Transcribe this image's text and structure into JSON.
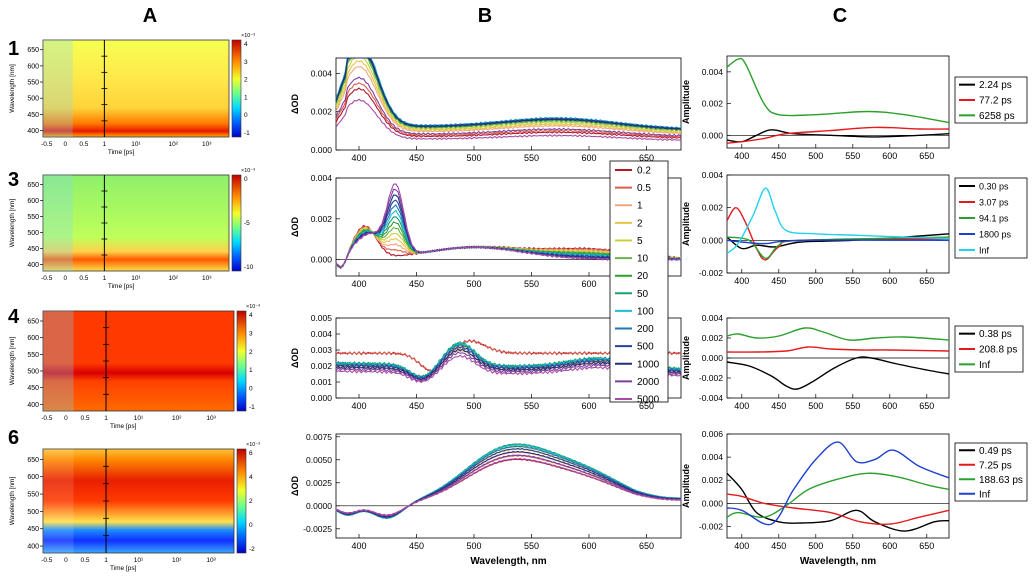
{
  "column_labels": [
    "A",
    "B",
    "C"
  ],
  "row_labels": [
    "1",
    "3",
    "4",
    "6"
  ],
  "colors": {
    "palette_B": [
      "#b2182b",
      "#d6604d",
      "#f4a582",
      "#e8c547",
      "#c7d13b",
      "#6ab04c",
      "#2ca02c",
      "#1b9e77",
      "#17becf",
      "#1f77b4",
      "#2c3e9e",
      "#1f2f7a",
      "#7a3fa0",
      "#a64ca6"
    ],
    "series_C": [
      "#000000",
      "#e41a1c",
      "#2ca02c",
      "#1f3fd1",
      "#22d3ee"
    ]
  },
  "colormaps": [
    {
      "name": "cmap-1",
      "exponent": "×10⁻³",
      "ticks": [
        "4",
        "3",
        "2",
        "1",
        "0",
        "-1"
      ]
    },
    {
      "name": "cmap-3",
      "exponent": "×10⁻³",
      "ticks": [
        "0",
        "-5",
        "-10"
      ]
    },
    {
      "name": "cmap-4",
      "exponent": "×10⁻³",
      "ticks": [
        "4",
        "3",
        "2",
        "1",
        "0",
        "-1"
      ]
    },
    {
      "name": "cmap-6",
      "exponent": "×10⁻³",
      "ticks": [
        "6",
        "4",
        "2",
        "0",
        "-2"
      ]
    }
  ],
  "chart_data": [
    {
      "type": "heatmap",
      "panel": "A",
      "compound": "1",
      "ylabel": "Wavelength [nm]",
      "xlabel": "Time [ps]",
      "yticks": [
        "650",
        "600",
        "550",
        "500",
        "450",
        "400"
      ],
      "xticks": [
        "-0.5",
        "0",
        "0.5",
        "1",
        "10¹",
        "10²",
        "10³"
      ],
      "ylim": [
        380,
        680
      ],
      "description_bands": [
        {
          "center": 400,
          "level": "high"
        },
        {
          "center": 550,
          "level": "medium"
        }
      ]
    },
    {
      "type": "heatmap",
      "panel": "A",
      "compound": "3",
      "ylabel": "Wavelength [nm]",
      "xlabel": "Time [ps]",
      "yticks": [
        "650",
        "600",
        "550",
        "500",
        "450",
        "400"
      ],
      "xticks": [
        "-0.5",
        "0",
        "0.5",
        "1",
        "10¹",
        "10²",
        "10³"
      ],
      "ylim": [
        380,
        680
      ],
      "description_bands": [
        {
          "center": 430,
          "level": "high"
        }
      ]
    },
    {
      "type": "heatmap",
      "panel": "A",
      "compound": "4",
      "ylabel": "Wavelength [nm]",
      "xlabel": "Time [ps]",
      "yticks": [
        "650",
        "600",
        "550",
        "500",
        "450",
        "400"
      ],
      "xticks": [
        "-0.5",
        "0",
        "0.5",
        "1",
        "10¹",
        "10²",
        "10³"
      ],
      "ylim": [
        380,
        680
      ],
      "description_bands": [
        {
          "center": 490,
          "level": "high"
        }
      ]
    },
    {
      "type": "heatmap",
      "panel": "A",
      "compound": "6",
      "ylabel": "Wavelength [nm]",
      "xlabel": "Time [ps]",
      "yticks": [
        "650",
        "600",
        "550",
        "500",
        "450",
        "400"
      ],
      "xticks": [
        "-0.5",
        "0",
        "0.5",
        "1",
        "10¹",
        "10²",
        "10³"
      ],
      "ylim": [
        380,
        680
      ],
      "description_bands": [
        {
          "center": 530,
          "level": "high"
        },
        {
          "center": 425,
          "level": "low"
        }
      ]
    },
    {
      "type": "line",
      "panel": "B",
      "compound": "1",
      "ylabel": "ΔOD",
      "xlabel": "",
      "xlim": [
        380,
        680
      ],
      "ylim": [
        0,
        0.0048
      ],
      "xticks": [
        "400",
        "450",
        "500",
        "550",
        "600",
        "650"
      ],
      "yticks": [
        "0.000",
        "0.002",
        "0.004"
      ],
      "ytick_values": [
        0,
        0.002,
        0.004
      ],
      "shape": {
        "p1": [
          395,
          0.0045
        ],
        "valley": [
          460,
          0.0013
        ],
        "p2": [
          580,
          0.0018
        ],
        "end": 0.0012
      },
      "scales": [
        0.55,
        0.6,
        0.75,
        0.8,
        0.85,
        0.9,
        0.93,
        0.95,
        1.0,
        0.98,
        0.97,
        0.95,
        0.65,
        0.45
      ]
    },
    {
      "type": "line",
      "panel": "B",
      "compound": "3",
      "ylabel": "ΔOD",
      "xlabel": "",
      "xlim": [
        380,
        680
      ],
      "ylim": [
        -0.0008,
        0.004
      ],
      "xticks": [
        "400",
        "450",
        "500",
        "550",
        "600",
        "650"
      ],
      "yticks": [
        "0.000",
        "0.002",
        "0.004"
      ],
      "ytick_values": [
        0,
        0.002,
        0.004
      ],
      "zero_line": true,
      "legend_title": "",
      "legend": [
        "0.2",
        "0.5",
        "1",
        "2",
        "5",
        "10",
        "20",
        "50",
        "100",
        "200",
        "500",
        "1000",
        "2000",
        "5000"
      ]
    },
    {
      "type": "line",
      "panel": "B",
      "compound": "4",
      "ylabel": "ΔOD",
      "xlabel": "",
      "xlim": [
        380,
        680
      ],
      "ylim": [
        0,
        0.005
      ],
      "xticks": [
        "400",
        "450",
        "500",
        "550",
        "600",
        "650"
      ],
      "yticks": [
        "0.000",
        "0.001",
        "0.002",
        "0.003",
        "0.004",
        "0.005"
      ],
      "ytick_values": [
        0,
        0.001,
        0.002,
        0.003,
        0.004,
        0.005
      ]
    },
    {
      "type": "line",
      "panel": "B",
      "compound": "6",
      "ylabel": "ΔOD",
      "xlabel": "Wavelength, nm",
      "xlim": [
        380,
        680
      ],
      "ylim": [
        -0.0035,
        0.0078
      ],
      "xticks": [
        "400",
        "450",
        "500",
        "550",
        "600",
        "650"
      ],
      "yticks": [
        "-0.0025",
        "0.0000",
        "0.0025",
        "0.0050",
        "0.0075"
      ],
      "ytick_values": [
        -0.0025,
        0,
        0.0025,
        0.005,
        0.0075
      ],
      "zero_line": true
    },
    {
      "type": "line",
      "panel": "C",
      "compound": "1",
      "ylabel": "Amplitude",
      "xlabel": "",
      "xlim": [
        380,
        680
      ],
      "ylim": [
        -0.0008,
        0.005
      ],
      "xticks": [
        "400",
        "450",
        "500",
        "550",
        "600",
        "650"
      ],
      "yticks": [
        "0.000",
        "0.002",
        "0.004"
      ],
      "ytick_values": [
        0,
        0.002,
        0.004
      ],
      "zero_line": true,
      "series": [
        {
          "name": "2.24 ps",
          "color": "#000000",
          "points": [
            [
              380,
              -0.0003
            ],
            [
              400,
              -0.0004
            ],
            [
              420,
              0.0
            ],
            [
              440,
              0.00035
            ],
            [
              470,
              0.0001
            ],
            [
              520,
              0.0
            ],
            [
              580,
              -0.0001
            ],
            [
              640,
              0.0
            ],
            [
              680,
              0.0001
            ]
          ]
        },
        {
          "name": "77.2 ps",
          "color": "#e41a1c",
          "points": [
            [
              380,
              -0.0005
            ],
            [
              400,
              -0.0004
            ],
            [
              430,
              -0.0002
            ],
            [
              460,
              0.0001
            ],
            [
              520,
              0.0003
            ],
            [
              580,
              0.0005
            ],
            [
              640,
              0.0004
            ],
            [
              680,
              0.0004
            ]
          ]
        },
        {
          "name": "6258 ps",
          "color": "#2ca02c",
          "points": [
            [
              380,
              0.0043
            ],
            [
              395,
              0.0048
            ],
            [
              405,
              0.0045
            ],
            [
              430,
              0.002
            ],
            [
              450,
              0.0013
            ],
            [
              500,
              0.0013
            ],
            [
              570,
              0.0015
            ],
            [
              620,
              0.0013
            ],
            [
              680,
              0.0008
            ]
          ]
        }
      ]
    },
    {
      "type": "line",
      "panel": "C",
      "compound": "3",
      "ylabel": "Amplitude",
      "xlabel": "",
      "xlim": [
        380,
        680
      ],
      "ylim": [
        -0.002,
        0.004
      ],
      "xticks": [
        "400",
        "450",
        "500",
        "550",
        "600",
        "650"
      ],
      "yticks": [
        "-0.002",
        "0.000",
        "0.002",
        "0.004"
      ],
      "ytick_values": [
        -0.002,
        0,
        0.002,
        0.004
      ],
      "zero_line": true,
      "series": [
        {
          "name": "0.30 ps",
          "color": "#000000",
          "points": [
            [
              380,
              0.0002
            ],
            [
              400,
              -0.0005
            ],
            [
              420,
              -0.0003
            ],
            [
              445,
              -0.0004
            ],
            [
              480,
              -0.0001
            ],
            [
              550,
              0.0
            ],
            [
              620,
              0.0002
            ],
            [
              680,
              0.0004
            ]
          ]
        },
        {
          "name": "3.07 ps",
          "color": "#e41a1c",
          "points": [
            [
              380,
              0.0012
            ],
            [
              392,
              0.002
            ],
            [
              405,
              0.0011
            ],
            [
              420,
              -0.0005
            ],
            [
              432,
              -0.0012
            ],
            [
              450,
              -0.0004
            ],
            [
              480,
              0.0
            ],
            [
              680,
              0.0001
            ]
          ]
        },
        {
          "name": "94.1 ps",
          "color": "#2ca02c",
          "points": [
            [
              380,
              0.0002
            ],
            [
              410,
              0.0
            ],
            [
              432,
              -0.0011
            ],
            [
              450,
              -0.0003
            ],
            [
              480,
              0.0
            ],
            [
              680,
              0.0002
            ]
          ]
        },
        {
          "name": "1800 ps",
          "color": "#1f3fd1",
          "points": [
            [
              380,
              0.0
            ],
            [
              400,
              -0.0001
            ],
            [
              432,
              -0.0002
            ],
            [
              480,
              0.0
            ],
            [
              680,
              0.0
            ]
          ]
        },
        {
          "name": "Inf",
          "color": "#22d3ee",
          "points": [
            [
              380,
              -0.0008
            ],
            [
              395,
              -0.0002
            ],
            [
              415,
              0.0015
            ],
            [
              432,
              0.0032
            ],
            [
              445,
              0.0018
            ],
            [
              460,
              0.0006
            ],
            [
              500,
              0.0004
            ],
            [
              560,
              0.0003
            ],
            [
              680,
              0.0001
            ]
          ]
        }
      ]
    },
    {
      "type": "line",
      "panel": "C",
      "compound": "4",
      "ylabel": "Amplitude",
      "xlabel": "",
      "xlim": [
        380,
        680
      ],
      "ylim": [
        -0.004,
        0.004
      ],
      "xticks": [
        "400",
        "450",
        "500",
        "550",
        "600",
        "650"
      ],
      "yticks": [
        "-0.004",
        "-0.002",
        "0.000",
        "0.002",
        "0.004"
      ],
      "ytick_values": [
        -0.004,
        -0.002,
        0,
        0.002,
        0.004
      ],
      "zero_line": true,
      "series": [
        {
          "name": "0.38 ps",
          "color": "#000000",
          "points": [
            [
              380,
              -0.0004
            ],
            [
              410,
              -0.0008
            ],
            [
              440,
              -0.0018
            ],
            [
              460,
              -0.0028
            ],
            [
              475,
              -0.0031
            ],
            [
              495,
              -0.0024
            ],
            [
              525,
              -0.001
            ],
            [
              555,
              0.0
            ],
            [
              575,
              0.0
            ],
            [
              610,
              -0.0006
            ],
            [
              650,
              -0.0012
            ],
            [
              680,
              -0.0016
            ]
          ]
        },
        {
          "name": "208.8 ps",
          "color": "#e41a1c",
          "points": [
            [
              380,
              0.0006
            ],
            [
              420,
              0.0006
            ],
            [
              460,
              0.0007
            ],
            [
              490,
              0.0011
            ],
            [
              520,
              0.0009
            ],
            [
              560,
              0.0008
            ],
            [
              600,
              0.0008
            ],
            [
              680,
              0.0007
            ]
          ]
        },
        {
          "name": "Inf",
          "color": "#2ca02c",
          "points": [
            [
              380,
              0.0022
            ],
            [
              395,
              0.0024
            ],
            [
              420,
              0.002
            ],
            [
              450,
              0.0022
            ],
            [
              485,
              0.003
            ],
            [
              510,
              0.0026
            ],
            [
              545,
              0.0018
            ],
            [
              580,
              0.002
            ],
            [
              620,
              0.0021
            ],
            [
              680,
              0.0018
            ]
          ]
        }
      ]
    },
    {
      "type": "line",
      "panel": "C",
      "compound": "6",
      "ylabel": "Amplitude",
      "xlabel": "Wavelength, nm",
      "xlim": [
        380,
        680
      ],
      "ylim": [
        -0.003,
        0.006
      ],
      "xticks": [
        "400",
        "450",
        "500",
        "550",
        "600",
        "650"
      ],
      "yticks": [
        "-0.002",
        "0.000",
        "0.002",
        "0.004",
        "0.006"
      ],
      "ytick_values": [
        -0.002,
        0,
        0.002,
        0.004,
        0.006
      ],
      "zero_line": true,
      "series": [
        {
          "name": "0.49 ps",
          "color": "#000000",
          "points": [
            [
              380,
              0.0026
            ],
            [
              400,
              0.0012
            ],
            [
              420,
              -0.0008
            ],
            [
              450,
              -0.0016
            ],
            [
              480,
              -0.0017
            ],
            [
              520,
              -0.0015
            ],
            [
              555,
              -0.0006
            ],
            [
              580,
              -0.0016
            ],
            [
              620,
              -0.0024
            ],
            [
              660,
              -0.0016
            ],
            [
              680,
              -0.0015
            ]
          ]
        },
        {
          "name": "7.25 ps",
          "color": "#e41a1c",
          "points": [
            [
              380,
              0.0008
            ],
            [
              400,
              0.0006
            ],
            [
              430,
              0.0
            ],
            [
              470,
              -0.0004
            ],
            [
              520,
              -0.0008
            ],
            [
              560,
              -0.0016
            ],
            [
              600,
              -0.0018
            ],
            [
              640,
              -0.0012
            ],
            [
              680,
              -0.0006
            ]
          ]
        },
        {
          "name": "188.63 ps",
          "color": "#2ca02c",
          "points": [
            [
              380,
              -0.0012
            ],
            [
              395,
              -0.0008
            ],
            [
              430,
              -0.0012
            ],
            [
              460,
              -0.0002
            ],
            [
              490,
              0.0012
            ],
            [
              530,
              0.0021
            ],
            [
              570,
              0.0026
            ],
            [
              610,
              0.0023
            ],
            [
              650,
              0.0016
            ],
            [
              680,
              0.0012
            ]
          ]
        },
        {
          "name": "Inf",
          "color": "#1f3fd1",
          "points": [
            [
              380,
              -0.0004
            ],
            [
              400,
              -0.0006
            ],
            [
              440,
              -0.0018
            ],
            [
              470,
              0.0012
            ],
            [
              500,
              0.0038
            ],
            [
              530,
              0.0053
            ],
            [
              555,
              0.0036
            ],
            [
              580,
              0.0038
            ],
            [
              605,
              0.0046
            ],
            [
              640,
              0.0032
            ],
            [
              680,
              0.0022
            ]
          ]
        }
      ]
    }
  ]
}
